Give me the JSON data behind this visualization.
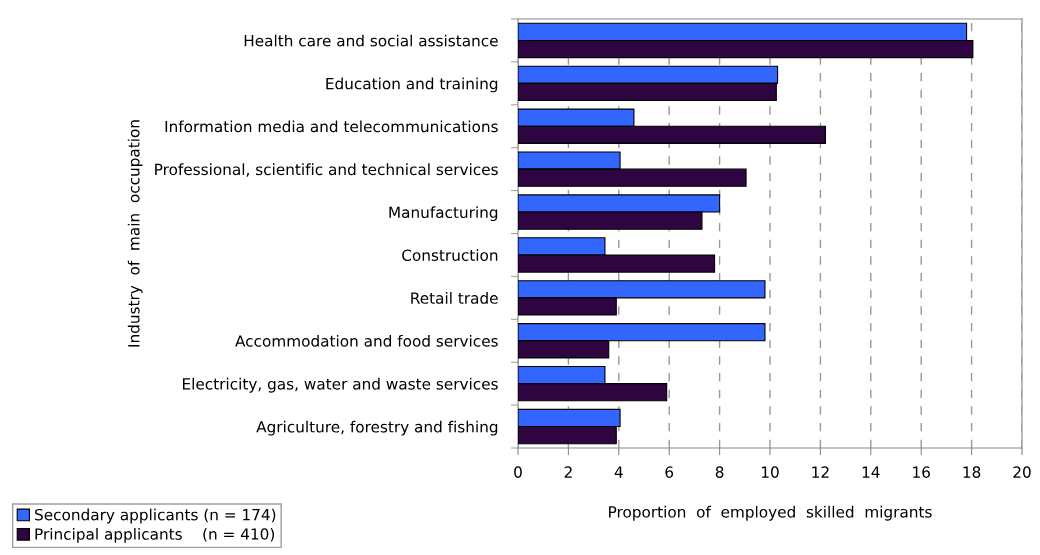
{
  "chart_data": {
    "type": "bar",
    "orientation": "horizontal",
    "xlabel": "Proportion  of  employed  skilled  migrants",
    "ylabel": "Industry  of  main  occupation",
    "categories": [
      "Health care and social assistance",
      "Education and training",
      "Information media and telecommunications",
      "Professional, scientific and technical services",
      "Manufacturing",
      "Construction",
      "Retail trade",
      "Accommodation and food services",
      "Electricity, gas, water and waste services",
      "Agriculture, forestry and fishing"
    ],
    "series": [
      {
        "name": "Secondary applicants (n = 174)",
        "color": "#3366ff",
        "values": [
          17.8,
          10.3,
          4.6,
          4.05,
          8.0,
          3.45,
          9.8,
          9.8,
          3.45,
          4.05
        ]
      },
      {
        "name": "Principal applicants    (n = 410)",
        "color": "#2e0441",
        "values": [
          18.05,
          10.25,
          12.2,
          9.05,
          7.3,
          7.8,
          3.9,
          3.6,
          5.9,
          3.9
        ]
      }
    ],
    "xlim": [
      0,
      20
    ],
    "xticks": [
      0,
      2,
      4,
      6,
      8,
      10,
      12,
      14,
      16,
      18,
      20
    ],
    "grid": "x",
    "legend": "bottom left"
  }
}
